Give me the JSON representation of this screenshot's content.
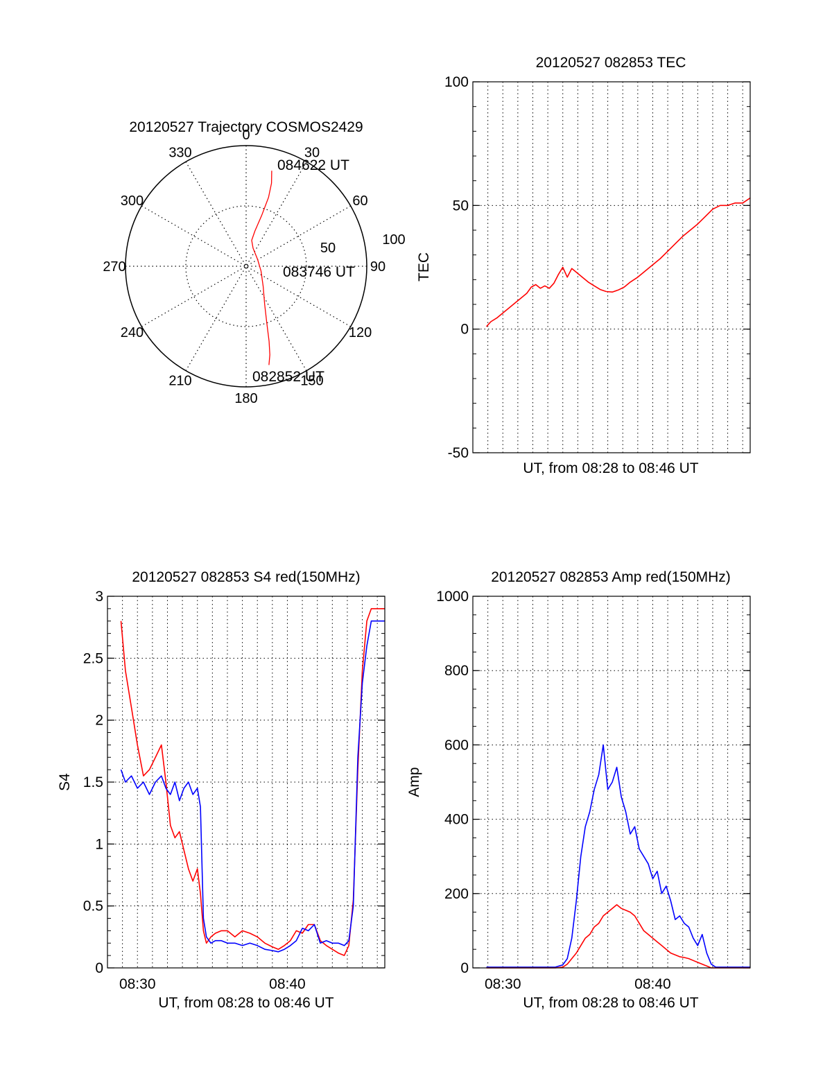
{
  "colors": {
    "red": "#ff0000",
    "blue": "#0000ff",
    "axis": "#000000",
    "grid": "#000000"
  },
  "chart_data": [
    {
      "type": "polar",
      "title": "20120527 Trajectory COSMOS2429",
      "azimuth_labels": [
        "0",
        "30",
        "60",
        "90",
        "120",
        "150",
        "180",
        "210",
        "240",
        "270",
        "300",
        "330"
      ],
      "radius_labels": [
        "50",
        "100"
      ],
      "radius_max": 100,
      "series": [
        {
          "color": "#ff0000",
          "points_az_r": [
            [
              15,
              82
            ],
            [
              17,
              72
            ],
            [
              18,
              60
            ],
            [
              17,
              44
            ],
            [
              14,
              30
            ],
            [
              12,
              22
            ],
            [
              21,
              16
            ],
            [
              60,
              11
            ],
            [
              108,
              13
            ],
            [
              140,
              22
            ],
            [
              154,
              35
            ],
            [
              160,
              50
            ],
            [
              163,
              65
            ],
            [
              165,
              76
            ],
            [
              167,
              84
            ]
          ]
        }
      ],
      "annotations": [
        "084622 UT",
        "083746 UT",
        "082852 UT"
      ]
    },
    {
      "type": "line",
      "title": "20120527 082853 TEC",
      "xlabel": "UT, from 08:28 to 08:46 UT",
      "ylabel": "TEC",
      "xlim": [
        0,
        18.5
      ],
      "ylim": [
        -50,
        100
      ],
      "yticks": [
        "-50",
        "0",
        "50",
        "100"
      ],
      "grid": true,
      "series": [
        {
          "color": "#ff0000",
          "x": [
            0.9,
            1.2,
            1.6,
            2.0,
            2.4,
            2.8,
            3.2,
            3.6,
            3.9,
            4.2,
            4.5,
            4.8,
            5.1,
            5.4,
            5.7,
            6.0,
            6.3,
            6.6,
            6.9,
            7.3,
            7.7,
            8.1,
            8.5,
            8.9,
            9.3,
            9.7,
            10.1,
            10.5,
            11.0,
            11.5,
            12.0,
            12.5,
            13.0,
            13.5,
            14.0,
            14.5,
            15.0,
            15.5,
            16.0,
            16.5,
            17.0,
            17.5,
            18.0,
            18.5
          ],
          "y": [
            1,
            3,
            4.5,
            6.5,
            8.5,
            10.5,
            12.5,
            14.5,
            17,
            18,
            16.5,
            17.5,
            16.5,
            18.5,
            22,
            25,
            21,
            24.5,
            23,
            21,
            19,
            17.5,
            16,
            15.2,
            15,
            15.8,
            17,
            19,
            21,
            23.5,
            26,
            28.5,
            31.5,
            34.5,
            37.5,
            40,
            42.5,
            45.5,
            48.5,
            50,
            50,
            51,
            51,
            53
          ]
        }
      ]
    },
    {
      "type": "line",
      "title": "20120527 082853 S4 red(150MHz)",
      "xlabel": "UT, from 08:28 to 08:46 UT",
      "ylabel": "S4",
      "xlim": [
        0,
        18.5
      ],
      "xticks": [
        "08:30",
        "08:40"
      ],
      "ylim": [
        0,
        3
      ],
      "yticks": [
        "0",
        "0.5",
        "1",
        "1.5",
        "2",
        "2.5",
        "3"
      ],
      "grid": true,
      "series": [
        {
          "color": "#ff0000",
          "x": [
            0.9,
            1.2,
            1.6,
            2.0,
            2.4,
            2.8,
            3.2,
            3.6,
            3.9,
            4.2,
            4.5,
            4.8,
            5.1,
            5.4,
            5.7,
            6.0,
            6.2,
            6.4,
            6.6,
            6.9,
            7.2,
            7.6,
            8.0,
            8.5,
            9.0,
            9.5,
            10.0,
            10.5,
            11.0,
            11.4,
            11.8,
            12.2,
            12.6,
            13.0,
            13.4,
            13.8,
            14.2,
            14.6,
            15.0,
            15.4,
            15.8,
            16.1,
            16.4,
            16.7,
            17.0,
            17.3,
            17.6,
            17.9,
            18.2,
            18.5
          ],
          "y": [
            2.8,
            2.4,
            2.1,
            1.8,
            1.55,
            1.6,
            1.7,
            1.8,
            1.5,
            1.15,
            1.05,
            1.1,
            0.95,
            0.8,
            0.7,
            0.8,
            0.6,
            0.3,
            0.2,
            0.25,
            0.28,
            0.3,
            0.3,
            0.25,
            0.3,
            0.28,
            0.25,
            0.2,
            0.17,
            0.15,
            0.18,
            0.22,
            0.3,
            0.28,
            0.35,
            0.35,
            0.22,
            0.18,
            0.15,
            0.12,
            0.1,
            0.18,
            0.55,
            1.6,
            2.4,
            2.8,
            2.9,
            2.9,
            2.9,
            2.9
          ]
        },
        {
          "color": "#0000ff",
          "x": [
            0.9,
            1.2,
            1.6,
            2.0,
            2.4,
            2.8,
            3.2,
            3.6,
            3.9,
            4.2,
            4.5,
            4.8,
            5.1,
            5.4,
            5.7,
            6.0,
            6.2,
            6.4,
            6.6,
            6.9,
            7.2,
            7.6,
            8.0,
            8.5,
            9.0,
            9.5,
            10.0,
            10.5,
            11.0,
            11.4,
            11.8,
            12.2,
            12.6,
            13.0,
            13.4,
            13.8,
            14.2,
            14.6,
            15.0,
            15.4,
            15.8,
            16.1,
            16.4,
            16.7,
            17.0,
            17.3,
            17.6,
            17.9,
            18.2,
            18.5
          ],
          "y": [
            1.6,
            1.5,
            1.55,
            1.45,
            1.5,
            1.4,
            1.5,
            1.55,
            1.45,
            1.4,
            1.5,
            1.35,
            1.45,
            1.5,
            1.4,
            1.45,
            1.3,
            0.4,
            0.25,
            0.2,
            0.22,
            0.22,
            0.2,
            0.2,
            0.18,
            0.2,
            0.18,
            0.15,
            0.14,
            0.13,
            0.15,
            0.18,
            0.22,
            0.32,
            0.3,
            0.35,
            0.2,
            0.22,
            0.2,
            0.2,
            0.18,
            0.22,
            0.5,
            1.7,
            2.3,
            2.6,
            2.8,
            2.8,
            2.8,
            2.8
          ]
        }
      ]
    },
    {
      "type": "line",
      "title": "20120527 082853 Amp red(150MHz)",
      "xlabel": "UT, from 08:28 to 08:46 UT",
      "ylabel": "Amp",
      "xlim": [
        0,
        18.5
      ],
      "xticks": [
        "08:30",
        "08:40"
      ],
      "ylim": [
        0,
        1000
      ],
      "yticks": [
        "0",
        "200",
        "400",
        "600",
        "800",
        "1000"
      ],
      "grid": true,
      "series": [
        {
          "color": "#0000ff",
          "x": [
            0.9,
            2.0,
            3.0,
            4.0,
            5.0,
            5.5,
            6.0,
            6.3,
            6.6,
            6.9,
            7.2,
            7.5,
            7.8,
            8.1,
            8.4,
            8.7,
            9.0,
            9.3,
            9.6,
            9.9,
            10.2,
            10.5,
            10.8,
            11.1,
            11.4,
            11.7,
            12.0,
            12.3,
            12.6,
            12.9,
            13.2,
            13.5,
            13.8,
            14.1,
            14.4,
            14.7,
            15.0,
            15.3,
            15.6,
            15.9,
            16.2,
            16.5,
            17.0,
            17.5,
            18.0,
            18.5
          ],
          "y": [
            2,
            2,
            2,
            2,
            2,
            2,
            8,
            25,
            80,
            180,
            300,
            380,
            420,
            480,
            520,
            600,
            480,
            500,
            540,
            460,
            420,
            360,
            380,
            320,
            300,
            280,
            240,
            260,
            200,
            220,
            180,
            130,
            140,
            120,
            110,
            80,
            60,
            90,
            40,
            10,
            2,
            2,
            2,
            2,
            2,
            2
          ]
        },
        {
          "color": "#ff0000",
          "x": [
            0.9,
            2.0,
            3.0,
            4.0,
            5.0,
            5.5,
            6.0,
            6.3,
            6.6,
            6.9,
            7.2,
            7.5,
            7.8,
            8.1,
            8.4,
            8.7,
            9.0,
            9.3,
            9.6,
            9.9,
            10.2,
            10.5,
            10.8,
            11.1,
            11.4,
            11.7,
            12.0,
            12.3,
            12.6,
            12.9,
            13.2,
            13.5,
            13.8,
            14.1,
            14.4,
            14.7,
            15.0,
            15.3,
            15.6,
            15.9,
            16.2,
            16.5,
            17.0,
            17.5,
            18.0,
            18.5
          ],
          "y": [
            0,
            0,
            0,
            0,
            0,
            0,
            2,
            10,
            25,
            40,
            60,
            80,
            90,
            110,
            120,
            140,
            150,
            160,
            170,
            160,
            155,
            150,
            140,
            120,
            100,
            90,
            80,
            70,
            60,
            50,
            40,
            35,
            30,
            28,
            25,
            20,
            15,
            10,
            5,
            0,
            0,
            0,
            0,
            0,
            0,
            0
          ]
        }
      ]
    }
  ]
}
